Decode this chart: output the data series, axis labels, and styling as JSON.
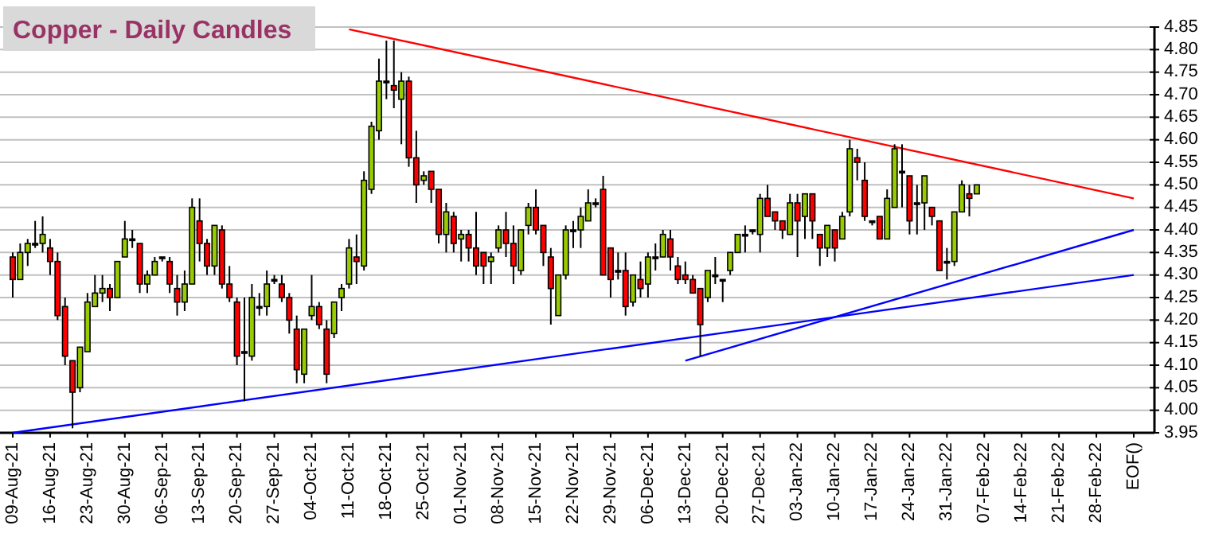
{
  "chart_data": {
    "type": "candlestick",
    "title": "Copper - Daily Candles",
    "categories": [
      "09-Aug-21",
      null,
      null,
      null,
      null,
      "16-Aug-21",
      null,
      null,
      null,
      null,
      "23-Aug-21",
      null,
      null,
      null,
      null,
      "30-Aug-21",
      null,
      null,
      null,
      null,
      "06-Sep-21",
      null,
      null,
      null,
      null,
      "13-Sep-21",
      null,
      null,
      null,
      null,
      "20-Sep-21",
      null,
      null,
      null,
      null,
      "27-Sep-21",
      null,
      null,
      null,
      null,
      "04-Oct-21",
      null,
      null,
      null,
      null,
      "11-Oct-21",
      null,
      null,
      null,
      null,
      "18-Oct-21",
      null,
      null,
      null,
      null,
      "25-Oct-21",
      null,
      null,
      null,
      null,
      "01-Nov-21",
      null,
      null,
      null,
      null,
      "08-Nov-21",
      null,
      null,
      null,
      null,
      "15-Nov-21",
      null,
      null,
      null,
      null,
      "22-Nov-21",
      null,
      null,
      null,
      null,
      "29-Nov-21",
      null,
      null,
      null,
      null,
      "06-Dec-21",
      null,
      null,
      null,
      null,
      "13-Dec-21",
      null,
      null,
      null,
      null,
      "20-Dec-21",
      null,
      null,
      null,
      null,
      "27-Dec-21",
      null,
      null,
      null,
      null,
      "03-Jan-22",
      null,
      null,
      null,
      null,
      "10-Jan-22",
      null,
      null,
      null,
      null,
      "17-Jan-22",
      null,
      null,
      null,
      null,
      "24-Jan-22",
      null,
      null,
      null,
      null,
      "31-Jan-22",
      null,
      null,
      null,
      null,
      "07-Feb-22",
      null,
      null,
      null,
      null,
      "14-Feb-22",
      null,
      null,
      null,
      null,
      "21-Feb-22",
      null,
      null,
      null,
      null,
      "28-Feb-22",
      null,
      null,
      null,
      null,
      "EOF()"
    ],
    "ohlc": [
      [
        4.34,
        4.35,
        4.25,
        4.29
      ],
      [
        4.29,
        4.37,
        4.29,
        4.35
      ],
      [
        4.35,
        4.38,
        4.32,
        4.37
      ],
      [
        4.37,
        4.42,
        4.36,
        4.37
      ],
      [
        4.37,
        4.43,
        4.35,
        4.39
      ],
      [
        4.36,
        4.38,
        4.3,
        4.33
      ],
      [
        4.33,
        4.35,
        4.2,
        4.21
      ],
      [
        4.23,
        4.25,
        4.1,
        4.12
      ],
      [
        4.11,
        4.11,
        3.96,
        4.04
      ],
      [
        4.05,
        4.14,
        4.04,
        4.14
      ],
      [
        4.13,
        4.26,
        4.13,
        4.24
      ],
      [
        4.23,
        4.3,
        4.23,
        4.26
      ],
      [
        4.26,
        4.3,
        4.24,
        4.27
      ],
      [
        4.27,
        4.28,
        4.22,
        4.25
      ],
      [
        4.25,
        4.33,
        4.25,
        4.33
      ],
      [
        4.34,
        4.42,
        4.34,
        4.38
      ],
      [
        4.38,
        4.4,
        4.36,
        4.38
      ],
      [
        4.37,
        4.37,
        4.26,
        4.28
      ],
      [
        4.28,
        4.31,
        4.26,
        4.3
      ],
      [
        4.3,
        4.34,
        4.3,
        4.33
      ],
      [
        4.34,
        4.34,
        4.33,
        4.34
      ],
      [
        4.33,
        4.34,
        4.26,
        4.28
      ],
      [
        4.27,
        4.3,
        4.21,
        4.24
      ],
      [
        4.24,
        4.31,
        4.22,
        4.28
      ],
      [
        4.28,
        4.47,
        4.28,
        4.45
      ],
      [
        4.42,
        4.47,
        4.33,
        4.37
      ],
      [
        4.37,
        4.38,
        4.3,
        4.32
      ],
      [
        4.32,
        4.41,
        4.3,
        4.41
      ],
      [
        4.4,
        4.41,
        4.27,
        4.28
      ],
      [
        4.28,
        4.32,
        4.24,
        4.25
      ],
      [
        4.24,
        4.25,
        4.1,
        4.12
      ],
      [
        4.13,
        4.25,
        4.02,
        4.13
      ],
      [
        4.12,
        4.28,
        4.11,
        4.25
      ],
      [
        4.23,
        4.26,
        4.21,
        4.23
      ],
      [
        4.23,
        4.31,
        4.21,
        4.28
      ],
      [
        4.29,
        4.3,
        4.28,
        4.29
      ],
      [
        4.28,
        4.3,
        4.24,
        4.25
      ],
      [
        4.25,
        4.26,
        4.17,
        4.2
      ],
      [
        4.18,
        4.21,
        4.06,
        4.09
      ],
      [
        4.08,
        4.18,
        4.06,
        4.18
      ],
      [
        4.21,
        4.3,
        4.2,
        4.23
      ],
      [
        4.23,
        4.24,
        4.18,
        4.19
      ],
      [
        4.18,
        4.2,
        4.06,
        4.08
      ],
      [
        4.17,
        4.24,
        4.16,
        4.24
      ],
      [
        4.25,
        4.28,
        4.22,
        4.27
      ],
      [
        4.28,
        4.38,
        4.27,
        4.36
      ],
      [
        4.34,
        4.39,
        4.28,
        4.33
      ],
      [
        4.32,
        4.53,
        4.31,
        4.51
      ],
      [
        4.49,
        4.64,
        4.48,
        4.63
      ],
      [
        4.62,
        4.78,
        4.6,
        4.73
      ],
      [
        4.73,
        4.82,
        4.69,
        4.73
      ],
      [
        4.72,
        4.82,
        4.67,
        4.71
      ],
      [
        4.69,
        4.75,
        4.59,
        4.73
      ],
      [
        4.73,
        4.74,
        4.54,
        4.56
      ],
      [
        4.56,
        4.62,
        4.46,
        4.5
      ],
      [
        4.51,
        4.53,
        4.5,
        4.52
      ],
      [
        4.53,
        4.53,
        4.46,
        4.49
      ],
      [
        4.49,
        4.49,
        4.37,
        4.39
      ],
      [
        4.39,
        4.46,
        4.35,
        4.44
      ],
      [
        4.43,
        4.44,
        4.35,
        4.37
      ],
      [
        4.38,
        4.4,
        4.33,
        4.39
      ],
      [
        4.39,
        4.4,
        4.33,
        4.36
      ],
      [
        4.36,
        4.44,
        4.3,
        4.32
      ],
      [
        4.35,
        4.35,
        4.28,
        4.32
      ],
      [
        4.33,
        4.35,
        4.28,
        4.34
      ],
      [
        4.36,
        4.41,
        4.35,
        4.4
      ],
      [
        4.4,
        4.44,
        4.34,
        4.37
      ],
      [
        4.37,
        4.41,
        4.28,
        4.32
      ],
      [
        4.31,
        4.4,
        4.3,
        4.4
      ],
      [
        4.41,
        4.46,
        4.39,
        4.45
      ],
      [
        4.45,
        4.49,
        4.39,
        4.4
      ],
      [
        4.41,
        4.41,
        4.32,
        4.35
      ],
      [
        4.34,
        4.36,
        4.19,
        4.27
      ],
      [
        4.21,
        4.3,
        4.21,
        4.3
      ],
      [
        4.3,
        4.41,
        4.29,
        4.4
      ],
      [
        4.4,
        4.42,
        4.36,
        4.4
      ],
      [
        4.4,
        4.45,
        4.36,
        4.43
      ],
      [
        4.42,
        4.49,
        4.42,
        4.46
      ],
      [
        4.46,
        4.47,
        4.45,
        4.46
      ],
      [
        4.49,
        4.52,
        4.3,
        4.3
      ],
      [
        4.36,
        4.36,
        4.25,
        4.29
      ],
      [
        4.31,
        4.35,
        4.29,
        4.31
      ],
      [
        4.31,
        4.35,
        4.21,
        4.23
      ],
      [
        4.24,
        4.3,
        4.23,
        4.3
      ],
      [
        4.29,
        4.33,
        4.25,
        4.27
      ],
      [
        4.28,
        4.35,
        4.25,
        4.34
      ],
      [
        4.34,
        4.37,
        4.31,
        4.34
      ],
      [
        4.34,
        4.4,
        4.34,
        4.39
      ],
      [
        4.38,
        4.4,
        4.31,
        4.34
      ],
      [
        4.32,
        4.34,
        4.28,
        4.29
      ],
      [
        4.3,
        4.33,
        4.28,
        4.29
      ],
      [
        4.29,
        4.3,
        4.26,
        4.26
      ],
      [
        4.27,
        4.27,
        4.12,
        4.19
      ],
      [
        4.25,
        4.31,
        4.24,
        4.31
      ],
      [
        4.3,
        4.34,
        4.28,
        4.3
      ],
      [
        4.29,
        4.29,
        4.24,
        4.29
      ],
      [
        4.31,
        4.35,
        4.3,
        4.35
      ],
      [
        4.35,
        4.39,
        4.35,
        4.39
      ],
      [
        4.39,
        4.41,
        4.35,
        4.39
      ],
      [
        4.4,
        4.4,
        4.39,
        4.4
      ],
      [
        4.39,
        4.48,
        4.35,
        4.47
      ],
      [
        4.47,
        4.5,
        4.43,
        4.43
      ],
      [
        4.44,
        4.44,
        4.4,
        4.42
      ],
      [
        4.42,
        4.42,
        4.38,
        4.4
      ],
      [
        4.39,
        4.48,
        4.39,
        4.46
      ],
      [
        4.46,
        4.48,
        4.34,
        4.42
      ],
      [
        4.43,
        4.48,
        4.38,
        4.48
      ],
      [
        4.48,
        4.48,
        4.38,
        4.42
      ],
      [
        4.39,
        4.39,
        4.32,
        4.36
      ],
      [
        4.36,
        4.41,
        4.34,
        4.41
      ],
      [
        4.4,
        4.4,
        4.33,
        4.36
      ],
      [
        4.38,
        4.44,
        4.38,
        4.43
      ],
      [
        4.44,
        4.6,
        4.43,
        4.58
      ],
      [
        4.56,
        4.58,
        4.51,
        4.55
      ],
      [
        4.51,
        4.55,
        4.42,
        4.43
      ],
      [
        4.42,
        4.42,
        4.41,
        4.42
      ],
      [
        4.43,
        4.43,
        4.38,
        4.38
      ],
      [
        4.38,
        4.49,
        4.38,
        4.47
      ],
      [
        4.45,
        4.59,
        4.45,
        4.58
      ],
      [
        4.53,
        4.59,
        4.45,
        4.53
      ],
      [
        4.52,
        4.52,
        4.39,
        4.42
      ],
      [
        4.46,
        4.5,
        4.39,
        4.46
      ],
      [
        4.46,
        4.52,
        4.4,
        4.52
      ],
      [
        4.45,
        4.45,
        4.41,
        4.43
      ],
      [
        4.42,
        4.42,
        4.31,
        4.31
      ],
      [
        4.33,
        4.36,
        4.29,
        4.33
      ],
      [
        4.33,
        4.44,
        4.32,
        4.44
      ],
      [
        4.44,
        4.51,
        4.44,
        4.5
      ],
      [
        4.48,
        4.5,
        4.43,
        4.47
      ],
      [
        4.48,
        4.5,
        4.48,
        4.5
      ],
      null,
      null,
      null,
      null,
      null,
      null,
      null,
      null,
      null,
      null,
      null,
      null,
      null,
      null,
      null,
      null,
      null,
      null,
      null,
      null,
      null
    ],
    "series": [
      {
        "type": "line",
        "color": "#ff0000",
        "x": [
          "11-Oct-21",
          "EOF()"
        ],
        "values": [
          4.845,
          4.47
        ]
      },
      {
        "type": "line",
        "color": "#0000ff",
        "x": [
          "09-Aug-21",
          "EOF()"
        ],
        "values": [
          3.95,
          4.3
        ]
      },
      {
        "type": "line",
        "color": "#0000ff",
        "x": [
          "13-Dec-21",
          "EOF()"
        ],
        "values": [
          4.11,
          4.4
        ]
      }
    ],
    "ylim": [
      3.95,
      4.85
    ],
    "yticks": [
      3.95,
      {
        "value": 4,
        "label": "4.00"
      },
      4.05,
      {
        "value": 4.1,
        "label": "4.10"
      },
      4.15,
      {
        "value": 4.2,
        "label": "4.20"
      },
      4.25,
      {
        "value": 4.3,
        "label": "4.30"
      },
      4.35,
      {
        "value": 4.4,
        "label": "4.40"
      },
      4.45,
      {
        "value": 4.5,
        "label": "4.50"
      },
      4.55,
      {
        "value": 4.6,
        "label": "4.60"
      },
      4.65,
      {
        "value": 4.7,
        "label": "4.70"
      },
      4.75,
      {
        "value": 4.8,
        "label": "4.80"
      },
      4.85
    ],
    "grid": "y"
  }
}
